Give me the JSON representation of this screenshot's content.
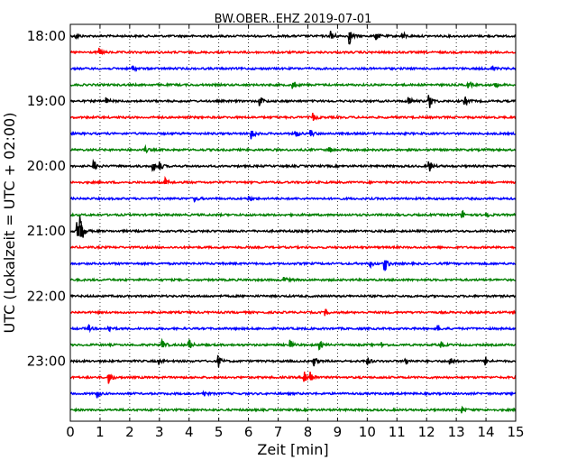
{
  "chart_data": {
    "type": "line",
    "title": "BW.OBER..EHZ 2019-07-01",
    "xlabel": "Zeit  [min]",
    "ylabel": "UTC (Lokalzeit = UTC + 02:00)",
    "xlim": [
      0,
      15
    ],
    "x_ticks": [
      "0",
      "1",
      "2",
      "3",
      "4",
      "5",
      "6",
      "7",
      "8",
      "9",
      "10",
      "11",
      "12",
      "13",
      "14",
      "15"
    ],
    "y_tick_labels": [
      "18:00",
      "19:00",
      "20:00",
      "21:00",
      "22:00",
      "23:00"
    ],
    "grid": "vertical dotted",
    "trace_colors": [
      "#000000",
      "#ff0000",
      "#0000ff",
      "#008000"
    ],
    "rows": [
      {
        "start": "18:00",
        "color": "#000000",
        "events": [
          [
            0.2,
            3
          ],
          [
            8.8,
            6
          ],
          [
            9.4,
            9
          ],
          [
            10.3,
            5
          ],
          [
            11.2,
            4
          ]
        ]
      },
      {
        "start": "18:15",
        "color": "#ff0000",
        "events": [
          [
            1.0,
            4
          ]
        ]
      },
      {
        "start": "18:30",
        "color": "#0000ff",
        "events": [
          [
            2.1,
            3
          ],
          [
            14.2,
            3
          ]
        ]
      },
      {
        "start": "18:45",
        "color": "#008000",
        "events": [
          [
            7.5,
            5
          ],
          [
            13.4,
            4
          ],
          [
            14.3,
            4
          ]
        ]
      },
      {
        "start": "19:00",
        "color": "#000000",
        "events": [
          [
            1.2,
            4
          ],
          [
            6.4,
            5
          ],
          [
            11.4,
            5
          ],
          [
            12.1,
            8
          ],
          [
            13.3,
            5
          ]
        ]
      },
      {
        "start": "19:15",
        "color": "#ff0000",
        "events": [
          [
            8.2,
            4
          ]
        ]
      },
      {
        "start": "19:30",
        "color": "#0000ff",
        "events": [
          [
            6.1,
            7
          ],
          [
            7.6,
            4
          ],
          [
            8.1,
            4
          ]
        ]
      },
      {
        "start": "19:45",
        "color": "#008000",
        "events": [
          [
            2.5,
            4
          ],
          [
            8.7,
            4
          ]
        ]
      },
      {
        "start": "20:00",
        "color": "#000000",
        "events": [
          [
            0.8,
            6
          ],
          [
            2.8,
            5
          ],
          [
            3.0,
            5
          ],
          [
            12.1,
            6
          ]
        ]
      },
      {
        "start": "20:15",
        "color": "#ff0000",
        "events": [
          [
            3.2,
            4
          ]
        ]
      },
      {
        "start": "20:30",
        "color": "#0000ff",
        "events": [
          [
            4.2,
            3
          ],
          [
            6.0,
            3
          ]
        ]
      },
      {
        "start": "20:45",
        "color": "#008000",
        "events": [
          [
            13.2,
            5
          ],
          [
            14.0,
            4
          ]
        ]
      },
      {
        "start": "21:00",
        "color": "#000000",
        "events": [
          [
            0.25,
            12
          ],
          [
            0.35,
            14
          ]
        ]
      },
      {
        "start": "21:15",
        "color": "#ff0000",
        "events": []
      },
      {
        "start": "21:30",
        "color": "#0000ff",
        "events": [
          [
            10.1,
            4
          ],
          [
            10.6,
            8
          ]
        ]
      },
      {
        "start": "21:45",
        "color": "#008000",
        "events": [
          [
            7.2,
            3
          ]
        ]
      },
      {
        "start": "22:00",
        "color": "#000000",
        "events": []
      },
      {
        "start": "22:15",
        "color": "#ff0000",
        "events": [
          [
            8.6,
            3
          ]
        ]
      },
      {
        "start": "22:30",
        "color": "#0000ff",
        "events": [
          [
            0.6,
            4
          ],
          [
            1.3,
            4
          ],
          [
            12.4,
            3
          ]
        ]
      },
      {
        "start": "22:45",
        "color": "#008000",
        "events": [
          [
            3.1,
            6
          ],
          [
            4.0,
            6
          ],
          [
            7.4,
            5
          ],
          [
            8.4,
            4
          ],
          [
            10.5,
            3
          ],
          [
            12.5,
            3
          ]
        ]
      },
      {
        "start": "23:00",
        "color": "#000000",
        "events": [
          [
            3.0,
            3
          ],
          [
            5.0,
            6
          ],
          [
            8.2,
            6
          ],
          [
            10.0,
            5
          ],
          [
            11.3,
            4
          ],
          [
            12.8,
            5
          ],
          [
            14.0,
            4
          ]
        ]
      },
      {
        "start": "23:15",
        "color": "#ff0000",
        "events": [
          [
            1.3,
            7
          ],
          [
            7.9,
            8
          ],
          [
            8.1,
            7
          ]
        ]
      },
      {
        "start": "23:30",
        "color": "#0000ff",
        "events": [
          [
            0.9,
            4
          ],
          [
            4.5,
            3
          ]
        ]
      },
      {
        "start": "23:45",
        "color": "#008000",
        "events": [
          [
            13.2,
            3
          ]
        ]
      }
    ]
  }
}
